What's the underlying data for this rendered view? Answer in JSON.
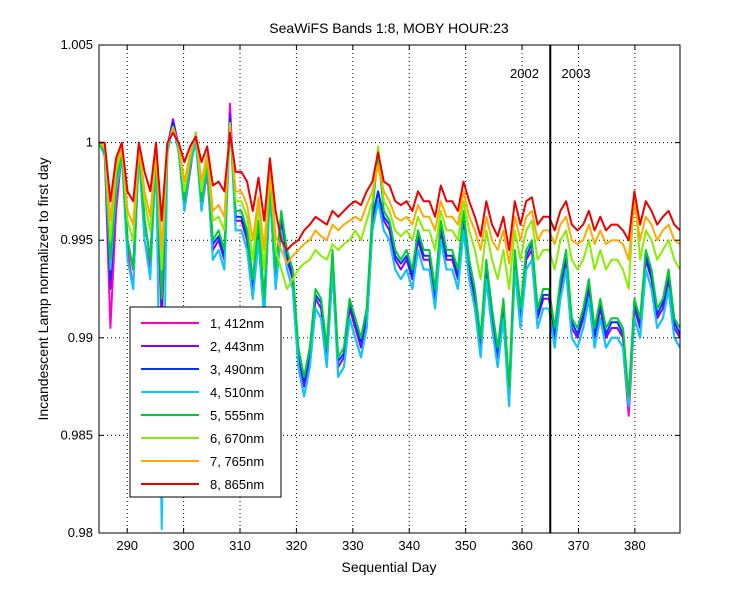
{
  "chart_data": {
    "type": "line",
    "title": "SeaWiFS Bands 1:8, MOBY HOUR:23",
    "xlabel": "Sequential Day",
    "ylabel": "Incandescent Lamp normalized to first day",
    "xlim": [
      285,
      388
    ],
    "ylim": [
      0.98,
      1.005
    ],
    "xticks": [
      "290",
      "300",
      "310",
      "320",
      "330",
      "340",
      "350",
      "360",
      "370",
      "380"
    ],
    "xtick_values": [
      290,
      300,
      310,
      320,
      330,
      340,
      350,
      360,
      370,
      380
    ],
    "yticks": [
      "0.98",
      "0.985",
      "0.99",
      "0.995",
      "1",
      "1.005"
    ],
    "ytick_values": [
      0.98,
      0.985,
      0.99,
      0.995,
      1,
      1.005
    ],
    "grid": "dotted",
    "legend_position": "lower-left",
    "annotations": [
      {
        "text": "2002",
        "x": 363,
        "y": 1.0033
      },
      {
        "text": "2003",
        "x": 367,
        "y": 1.0033
      }
    ],
    "vline": {
      "x": 365
    },
    "series": [
      {
        "name": "1, 412nm",
        "color": "#ff00cc",
        "y": [
          1.0,
          0.9995,
          0.9905,
          0.9965,
          0.9995,
          0.9945,
          0.9925,
          0.9995,
          0.995,
          0.9935,
          0.9993,
          0.9905,
          0.9995,
          1.001,
          0.9995,
          0.9965,
          0.9985,
          1.0005,
          0.9965,
          0.9985,
          0.994,
          0.9945,
          0.9935,
          1.002,
          0.9955,
          0.9955,
          0.9945,
          0.992,
          0.995,
          0.991,
          0.9975,
          0.9925,
          0.9955,
          0.9935,
          0.9925,
          0.9885,
          0.987,
          0.9885,
          0.9915,
          0.991,
          0.9885,
          0.9935,
          0.988,
          0.9885,
          0.991,
          0.99,
          0.989,
          0.9905,
          0.9955,
          0.997,
          0.9955,
          0.995,
          0.9935,
          0.993,
          0.9935,
          0.9925,
          0.9945,
          0.9935,
          0.9935,
          0.9915,
          0.995,
          0.9935,
          0.9935,
          0.9925,
          0.9955,
          0.993,
          0.9915,
          0.989,
          0.993,
          0.9905,
          0.9885,
          0.991,
          0.9865,
          0.9935,
          0.9905,
          0.9935,
          0.994,
          0.9905,
          0.9915,
          0.9915,
          0.9895,
          0.992,
          0.9935,
          0.99,
          0.9895,
          0.9905,
          0.992,
          0.9895,
          0.991,
          0.9895,
          0.99,
          0.99,
          0.9895,
          0.986,
          0.991,
          0.99,
          0.9935,
          0.9925,
          0.9905,
          0.991,
          0.9925,
          0.99,
          0.9895
        ]
      },
      {
        "name": "2, 443nm",
        "color": "#8800ff",
        "y": [
          1.0,
          0.9995,
          0.9925,
          0.9975,
          0.9995,
          0.995,
          0.9935,
          0.9998,
          0.996,
          0.994,
          0.9995,
          0.9915,
          0.9998,
          1.0012,
          0.9998,
          0.997,
          0.999,
          1.0005,
          0.997,
          0.999,
          0.9945,
          0.995,
          0.994,
          1.0015,
          0.996,
          0.996,
          0.995,
          0.9925,
          0.9955,
          0.9915,
          0.998,
          0.993,
          0.996,
          0.994,
          0.993,
          0.989,
          0.9875,
          0.989,
          0.992,
          0.9915,
          0.989,
          0.994,
          0.9885,
          0.989,
          0.9915,
          0.9905,
          0.9895,
          0.991,
          0.996,
          0.9975,
          0.996,
          0.9955,
          0.994,
          0.9935,
          0.994,
          0.993,
          0.995,
          0.994,
          0.994,
          0.992,
          0.9955,
          0.994,
          0.994,
          0.993,
          0.996,
          0.9935,
          0.992,
          0.9895,
          0.9935,
          0.991,
          0.989,
          0.9915,
          0.987,
          0.994,
          0.991,
          0.994,
          0.9945,
          0.991,
          0.992,
          0.992,
          0.99,
          0.9925,
          0.994,
          0.9905,
          0.99,
          0.991,
          0.9925,
          0.99,
          0.9915,
          0.99,
          0.9905,
          0.9905,
          0.99,
          0.9865,
          0.9915,
          0.9905,
          0.994,
          0.993,
          0.991,
          0.9915,
          0.993,
          0.9905,
          0.99
        ]
      },
      {
        "name": "3, 490nm",
        "color": "#0033ff",
        "y": [
          1.0,
          0.9995,
          0.993,
          0.9975,
          0.9995,
          0.995,
          0.9935,
          0.9997,
          0.996,
          0.994,
          0.9995,
          0.9918,
          0.9997,
          1.001,
          0.9997,
          0.997,
          0.999,
          1.0003,
          0.997,
          0.999,
          0.9948,
          0.9952,
          0.9942,
          1.0012,
          0.9962,
          0.9962,
          0.9952,
          0.9928,
          0.9958,
          0.9918,
          0.998,
          0.9932,
          0.9962,
          0.9942,
          0.9932,
          0.9892,
          0.9878,
          0.9892,
          0.9922,
          0.9918,
          0.9892,
          0.9942,
          0.9888,
          0.9892,
          0.9918,
          0.9908,
          0.9898,
          0.9912,
          0.9962,
          0.9975,
          0.9962,
          0.9958,
          0.9942,
          0.9938,
          0.9942,
          0.9932,
          0.9952,
          0.9942,
          0.9942,
          0.9922,
          0.9958,
          0.9942,
          0.9942,
          0.9932,
          0.9962,
          0.9938,
          0.9922,
          0.9898,
          0.9938,
          0.9912,
          0.9892,
          0.9918,
          0.9872,
          0.9942,
          0.9912,
          0.9942,
          0.9948,
          0.9912,
          0.9922,
          0.9922,
          0.9902,
          0.9928,
          0.9942,
          0.9908,
          0.9902,
          0.9912,
          0.9928,
          0.9902,
          0.9918,
          0.9902,
          0.9908,
          0.9908,
          0.9902,
          0.9868,
          0.9918,
          0.9908,
          0.9942,
          0.9932,
          0.9912,
          0.9918,
          0.9932,
          0.9908,
          0.9902
        ]
      },
      {
        "name": "4, 510nm",
        "color": "#00ccff",
        "y": [
          1.0,
          0.9993,
          0.9935,
          0.9975,
          0.9993,
          0.994,
          0.9925,
          0.9995,
          0.995,
          0.993,
          0.9993,
          0.9802,
          0.9995,
          1.0008,
          0.9995,
          0.9965,
          0.9988,
          1.0,
          0.9965,
          0.9988,
          0.994,
          0.9945,
          0.9935,
          1.001,
          0.9955,
          0.9955,
          0.9945,
          0.992,
          0.995,
          0.991,
          0.9975,
          0.9925,
          0.9955,
          0.9935,
          0.9925,
          0.9885,
          0.987,
          0.9885,
          0.9915,
          0.991,
          0.9885,
          0.9935,
          0.988,
          0.9885,
          0.991,
          0.99,
          0.989,
          0.9905,
          0.9955,
          0.997,
          0.9955,
          0.995,
          0.9935,
          0.993,
          0.9935,
          0.9925,
          0.9945,
          0.9935,
          0.9935,
          0.9915,
          0.995,
          0.9935,
          0.9935,
          0.9925,
          0.9955,
          0.993,
          0.9915,
          0.989,
          0.993,
          0.9905,
          0.9885,
          0.991,
          0.9865,
          0.9935,
          0.9905,
          0.9935,
          0.994,
          0.9905,
          0.9915,
          0.9915,
          0.9895,
          0.992,
          0.9935,
          0.99,
          0.9895,
          0.9905,
          0.992,
          0.9895,
          0.991,
          0.9895,
          0.99,
          0.99,
          0.9895,
          0.9865,
          0.991,
          0.99,
          0.9935,
          0.9925,
          0.9905,
          0.991,
          0.9925,
          0.99,
          0.9895
        ]
      },
      {
        "name": "5, 555nm",
        "color": "#00cc33",
        "y": [
          1.0,
          0.9995,
          0.994,
          0.998,
          0.9995,
          0.995,
          0.9935,
          0.9997,
          0.996,
          0.994,
          0.9995,
          0.992,
          0.9997,
          1.0008,
          0.9997,
          0.997,
          0.999,
          1.0005,
          0.997,
          0.999,
          0.995,
          0.9955,
          0.9945,
          1.001,
          0.9965,
          0.9965,
          0.9955,
          0.993,
          0.996,
          0.992,
          0.998,
          0.9935,
          0.9965,
          0.9945,
          0.9935,
          0.9895,
          0.988,
          0.9895,
          0.9925,
          0.992,
          0.9895,
          0.9945,
          0.989,
          0.9895,
          0.992,
          0.991,
          0.99,
          0.9915,
          0.9965,
          0.9995,
          0.9965,
          0.996,
          0.9945,
          0.994,
          0.9945,
          0.9935,
          0.9955,
          0.9945,
          0.9945,
          0.9925,
          0.996,
          0.9945,
          0.9945,
          0.9935,
          0.9965,
          0.994,
          0.9925,
          0.99,
          0.994,
          0.9915,
          0.9895,
          0.992,
          0.9875,
          0.9945,
          0.9915,
          0.9945,
          0.995,
          0.9915,
          0.9925,
          0.9925,
          0.9905,
          0.993,
          0.9945,
          0.991,
          0.9905,
          0.9915,
          0.993,
          0.9905,
          0.992,
          0.9905,
          0.991,
          0.991,
          0.9905,
          0.987,
          0.992,
          0.991,
          0.9945,
          0.9935,
          0.9915,
          0.992,
          0.9935,
          0.991,
          0.9905
        ]
      },
      {
        "name": "6, 670nm",
        "color": "#88ee00",
        "y": [
          1.0,
          0.9997,
          0.995,
          0.9985,
          0.9997,
          0.996,
          0.995,
          0.9998,
          0.997,
          0.9955,
          0.9997,
          0.9935,
          0.9998,
          1.0008,
          0.9998,
          0.9975,
          0.9992,
          1.0005,
          0.9975,
          0.9992,
          0.996,
          0.9962,
          0.9955,
          1.001,
          0.997,
          0.997,
          0.9962,
          0.994,
          0.9968,
          0.9935,
          0.9985,
          0.9945,
          0.9935,
          0.9925,
          0.993,
          0.9935,
          0.9938,
          0.994,
          0.9945,
          0.9942,
          0.994,
          0.9948,
          0.9945,
          0.9948,
          0.995,
          0.9955,
          0.995,
          0.996,
          0.997,
          0.9998,
          0.997,
          0.9965,
          0.9955,
          0.9952,
          0.9955,
          0.995,
          0.9962,
          0.9955,
          0.9955,
          0.9945,
          0.9965,
          0.9955,
          0.9955,
          0.995,
          0.997,
          0.9955,
          0.9945,
          0.993,
          0.9955,
          0.994,
          0.993,
          0.9945,
          0.9925,
          0.9955,
          0.994,
          0.9955,
          0.996,
          0.994,
          0.9945,
          0.9945,
          0.9935,
          0.995,
          0.9955,
          0.994,
          0.9935,
          0.994,
          0.995,
          0.9935,
          0.9945,
          0.9935,
          0.994,
          0.994,
          0.9935,
          0.9925,
          0.9975,
          0.994,
          0.9955,
          0.995,
          0.994,
          0.9945,
          0.995,
          0.994,
          0.9935
        ]
      },
      {
        "name": "7, 765nm",
        "color": "#ffaa00",
        "y": [
          1.0,
          0.9998,
          0.996,
          0.9988,
          0.9998,
          0.9965,
          0.9958,
          0.9999,
          0.9975,
          0.9962,
          0.9998,
          0.9945,
          0.9999,
          1.0007,
          0.9999,
          0.998,
          0.9994,
          1.0004,
          0.998,
          0.9994,
          0.9965,
          0.9968,
          0.9962,
          1.0008,
          0.9975,
          0.9975,
          0.9968,
          0.995,
          0.9972,
          0.9945,
          0.9988,
          0.9952,
          0.9945,
          0.9938,
          0.9942,
          0.9945,
          0.9948,
          0.995,
          0.9955,
          0.9952,
          0.995,
          0.9958,
          0.9955,
          0.9958,
          0.996,
          0.9962,
          0.996,
          0.9968,
          0.9975,
          0.9988,
          0.9975,
          0.997,
          0.9962,
          0.996,
          0.9962,
          0.9958,
          0.9968,
          0.9962,
          0.9962,
          0.9955,
          0.997,
          0.9962,
          0.9962,
          0.9958,
          0.9975,
          0.9962,
          0.9955,
          0.9945,
          0.9962,
          0.995,
          0.9945,
          0.9955,
          0.9938,
          0.9962,
          0.995,
          0.9962,
          0.9965,
          0.995,
          0.9955,
          0.9955,
          0.9948,
          0.9958,
          0.9962,
          0.995,
          0.9948,
          0.995,
          0.9958,
          0.9948,
          0.9955,
          0.9948,
          0.995,
          0.995,
          0.9948,
          0.994,
          0.997,
          0.995,
          0.9962,
          0.9958,
          0.995,
          0.9955,
          0.9958,
          0.995,
          0.9948
        ]
      },
      {
        "name": "8, 865nm",
        "color": "#ee0000",
        "y": [
          1.0,
          1.0,
          0.997,
          0.9992,
          1.0,
          0.9975,
          0.997,
          1.0,
          0.9985,
          0.9975,
          1.0,
          0.996,
          1.0,
          1.0005,
          1.0,
          0.999,
          0.9998,
          1.0003,
          0.999,
          0.9998,
          0.9978,
          0.998,
          0.9975,
          1.0005,
          0.9985,
          0.9985,
          0.998,
          0.9965,
          0.9982,
          0.996,
          0.9992,
          0.9965,
          0.995,
          0.9945,
          0.9948,
          0.995,
          0.9955,
          0.9958,
          0.9962,
          0.996,
          0.9958,
          0.9965,
          0.9962,
          0.9965,
          0.9968,
          0.997,
          0.9968,
          0.9975,
          0.998,
          0.9995,
          0.998,
          0.9978,
          0.997,
          0.9968,
          0.997,
          0.9965,
          0.9975,
          0.997,
          0.997,
          0.9962,
          0.9978,
          0.997,
          0.997,
          0.9965,
          0.998,
          0.997,
          0.9962,
          0.9952,
          0.997,
          0.9958,
          0.9952,
          0.9962,
          0.9945,
          0.997,
          0.9958,
          0.997,
          0.9972,
          0.9958,
          0.9962,
          0.9962,
          0.9955,
          0.9965,
          0.997,
          0.9958,
          0.9955,
          0.9958,
          0.9965,
          0.9955,
          0.9962,
          0.9955,
          0.9958,
          0.9958,
          0.9955,
          0.995,
          0.9975,
          0.9958,
          0.997,
          0.9965,
          0.9958,
          0.9962,
          0.9965,
          0.9958,
          0.9955
        ]
      }
    ]
  }
}
